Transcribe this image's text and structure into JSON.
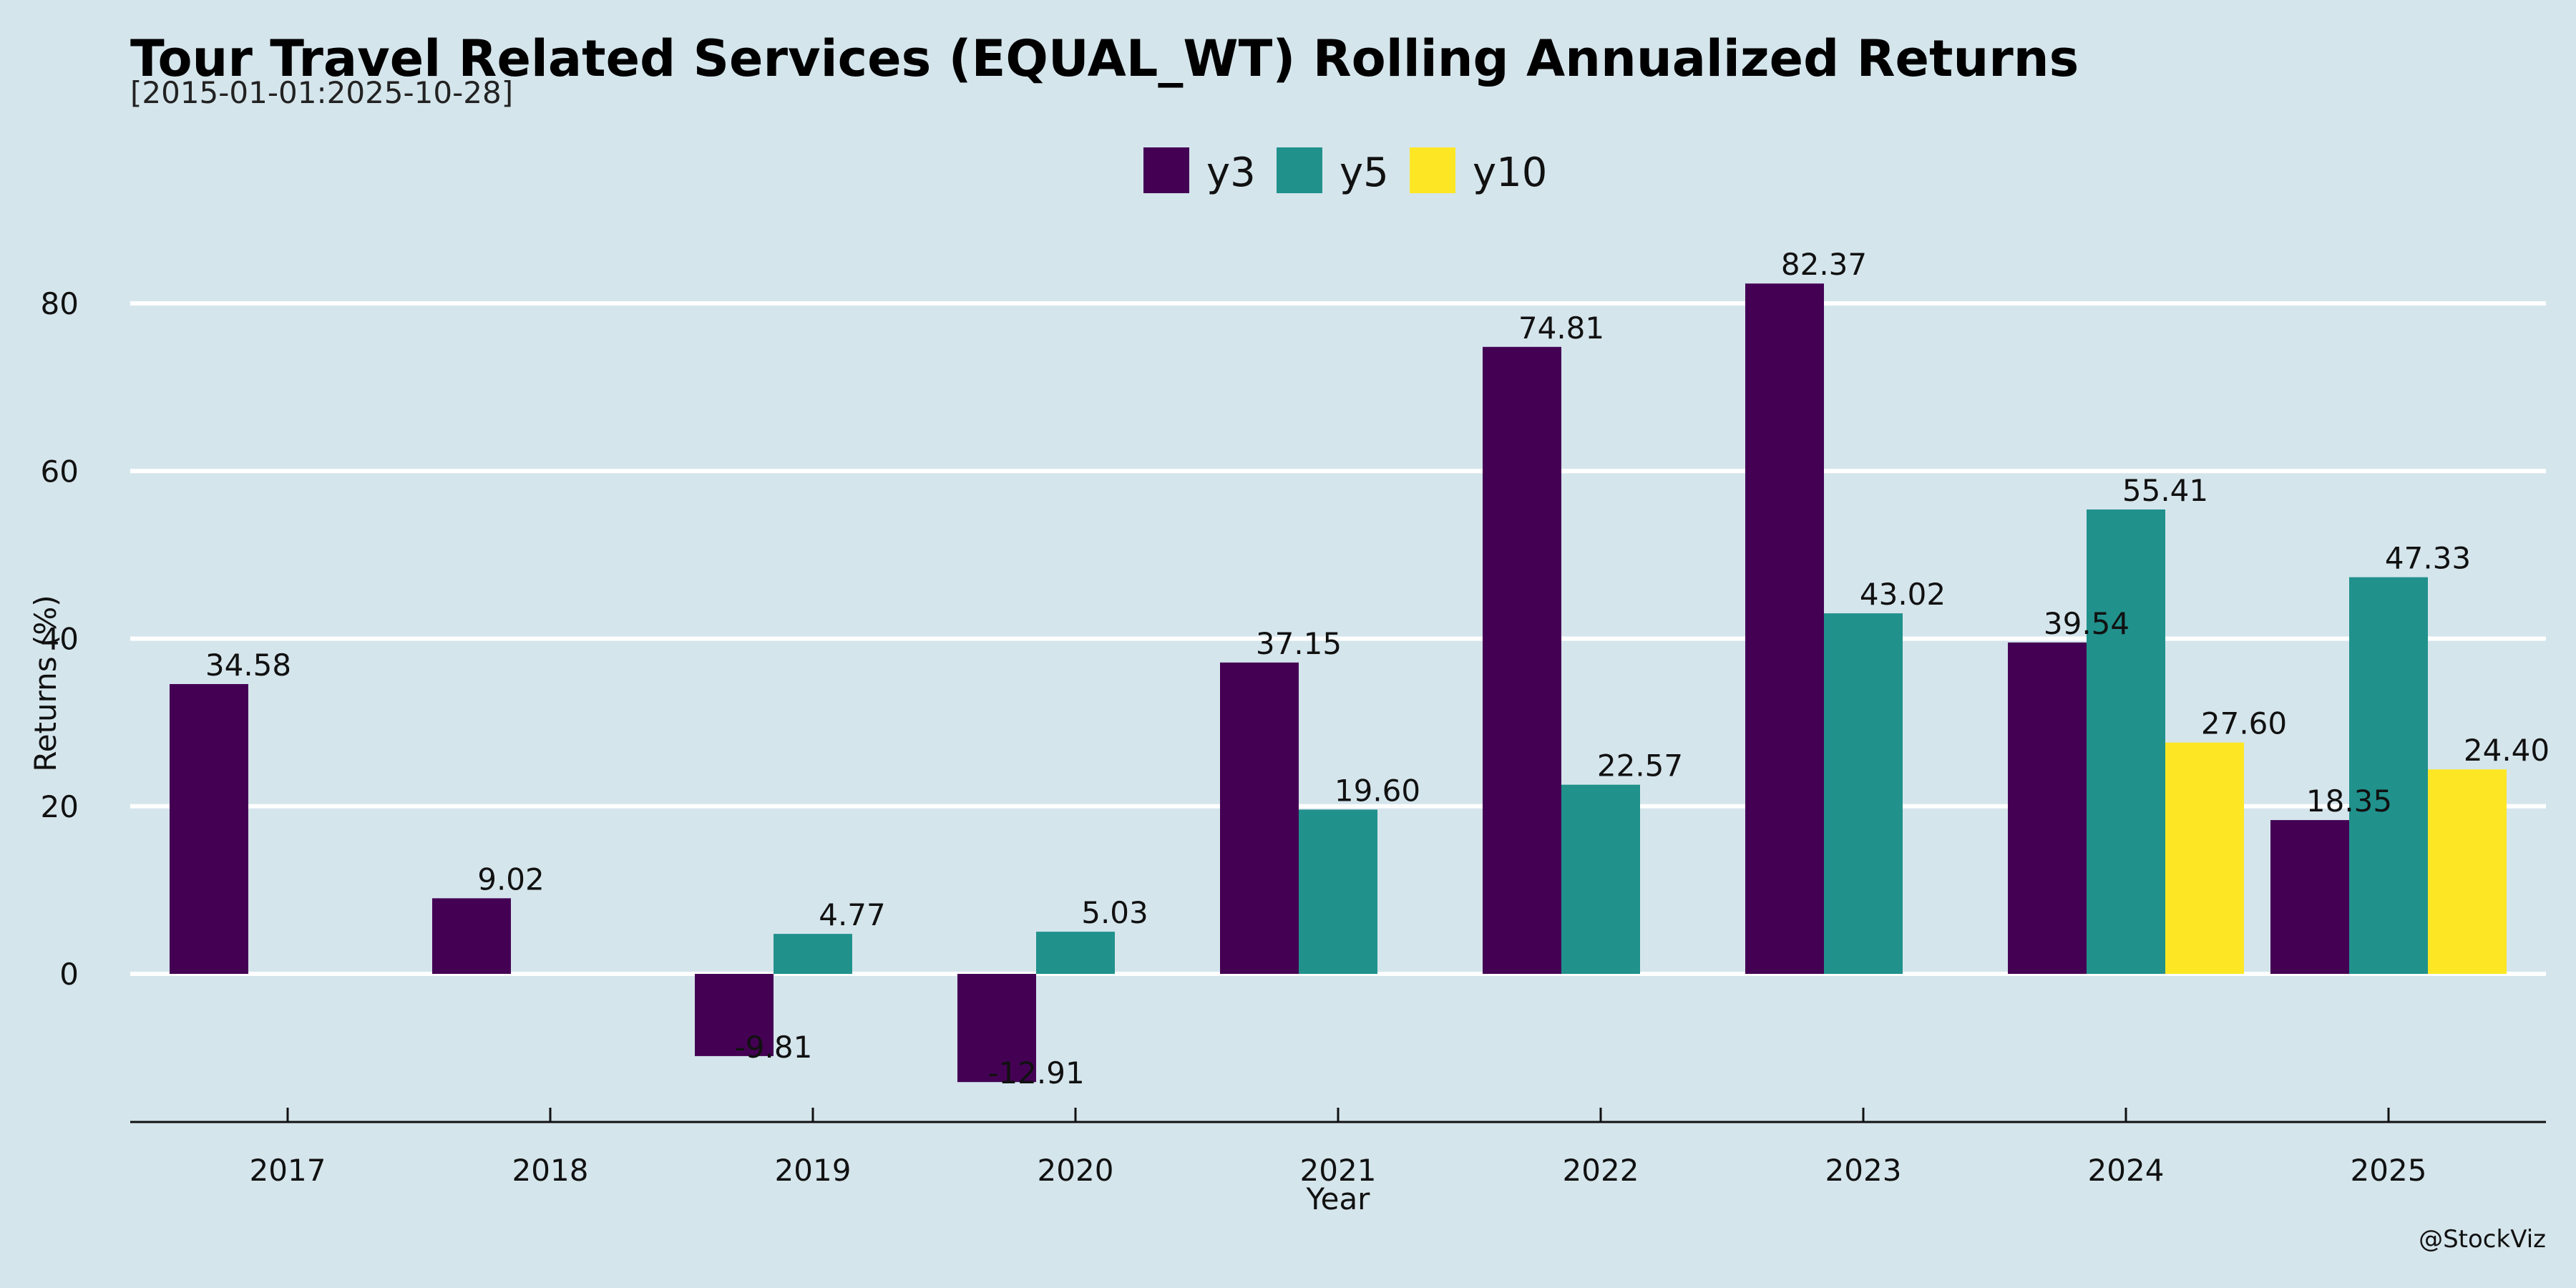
{
  "chart_data": {
    "type": "bar",
    "title": "Tour Travel Related Services (EQUAL_WT) Rolling Annualized Returns",
    "subtitle": "[2015-01-01:2025-10-28]",
    "xlabel": "Year",
    "ylabel": "Returns (%)",
    "categories": [
      "2017",
      "2018",
      "2019",
      "2020",
      "2021",
      "2022",
      "2023",
      "2024",
      "2025"
    ],
    "series": [
      {
        "name": "y3",
        "color": "#440154",
        "values": [
          34.58,
          9.02,
          -9.81,
          -12.91,
          37.15,
          74.81,
          82.37,
          39.54,
          18.35
        ]
      },
      {
        "name": "y5",
        "color": "#21918c",
        "values": [
          null,
          null,
          4.77,
          5.03,
          19.6,
          22.57,
          43.02,
          55.41,
          47.33
        ]
      },
      {
        "name": "y10",
        "color": "#fde725",
        "values": [
          null,
          null,
          null,
          null,
          null,
          null,
          null,
          27.6,
          24.4
        ]
      }
    ],
    "ylim": [
      -17.5,
      90
    ],
    "yticks": [
      0,
      20,
      40,
      60,
      80
    ],
    "grid": "horizontal",
    "legend_position": "top-center",
    "credit": "@StockViz"
  }
}
